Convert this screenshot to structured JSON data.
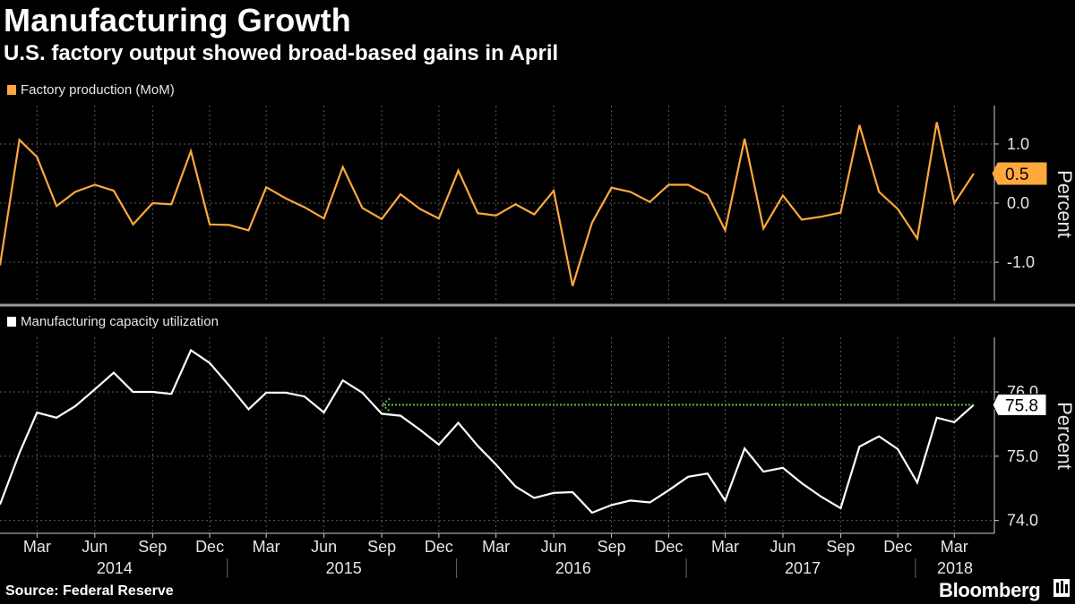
{
  "header": {
    "title": "Manufacturing Growth",
    "subtitle": "U.S. factory output showed broad-based gains in April"
  },
  "footer": {
    "source": "Source: Federal Reserve",
    "brand": "Bloomberg"
  },
  "colors": {
    "background": "#000000",
    "series1": "#ffa83e",
    "series2": "#ffffff",
    "arrow": "#59b93b",
    "grid": "#5a5a5a",
    "separator": "#9a9a9a"
  },
  "chart_data": [
    {
      "type": "line",
      "title": "",
      "series": [
        {
          "name": "Factory production (MoM)",
          "color": "#ffa83e",
          "x": [
            "2014-01",
            "2014-02",
            "2014-03",
            "2014-04",
            "2014-05",
            "2014-06",
            "2014-07",
            "2014-08",
            "2014-09",
            "2014-10",
            "2014-11",
            "2014-12",
            "2015-01",
            "2015-02",
            "2015-03",
            "2015-04",
            "2015-05",
            "2015-06",
            "2015-07",
            "2015-08",
            "2015-09",
            "2015-10",
            "2015-11",
            "2015-12",
            "2016-01",
            "2016-02",
            "2016-03",
            "2016-04",
            "2016-05",
            "2016-06",
            "2016-07",
            "2016-08",
            "2016-09",
            "2016-10",
            "2016-11",
            "2016-12",
            "2017-01",
            "2017-02",
            "2017-03",
            "2017-04",
            "2017-05",
            "2017-06",
            "2017-07",
            "2017-08",
            "2017-09",
            "2017-10",
            "2017-11",
            "2017-12",
            "2018-01",
            "2018-02",
            "2018-03",
            "2018-04"
          ],
          "values": [
            -1.05,
            1.07,
            0.78,
            -0.05,
            0.19,
            0.31,
            0.21,
            -0.36,
            0.0,
            -0.02,
            0.88,
            -0.36,
            -0.37,
            -0.46,
            0.27,
            0.08,
            -0.07,
            -0.26,
            0.61,
            -0.08,
            -0.27,
            0.15,
            -0.1,
            -0.26,
            0.55,
            -0.17,
            -0.21,
            -0.02,
            -0.19,
            0.21,
            -1.4,
            -0.33,
            0.26,
            0.19,
            0.02,
            0.31,
            0.31,
            0.14,
            -0.46,
            1.09,
            -0.43,
            0.13,
            -0.28,
            -0.23,
            -0.16,
            1.32,
            0.19,
            -0.1,
            -0.6,
            1.37,
            0.0,
            0.5
          ]
        }
      ],
      "ylim": [
        -1.65,
        1.65
      ],
      "yticks": [
        1.0,
        0.0,
        -1.0
      ],
      "ytick_labels": [
        "1.0",
        "0.0",
        "-1.0"
      ],
      "ylabel": "Percent",
      "last_value_label": "0.5",
      "grid": true,
      "legend_position": "top-left"
    },
    {
      "type": "line",
      "title": "",
      "series": [
        {
          "name": "Manufacturing capacity utilization",
          "color": "#ffffff",
          "x": [
            "2014-01",
            "2014-02",
            "2014-03",
            "2014-04",
            "2014-05",
            "2014-06",
            "2014-07",
            "2014-08",
            "2014-09",
            "2014-10",
            "2014-11",
            "2014-12",
            "2015-01",
            "2015-02",
            "2015-03",
            "2015-04",
            "2015-05",
            "2015-06",
            "2015-07",
            "2015-08",
            "2015-09",
            "2015-10",
            "2015-11",
            "2015-12",
            "2016-01",
            "2016-02",
            "2016-03",
            "2016-04",
            "2016-05",
            "2016-06",
            "2016-07",
            "2016-08",
            "2016-09",
            "2016-10",
            "2016-11",
            "2016-12",
            "2017-01",
            "2017-02",
            "2017-03",
            "2017-04",
            "2017-05",
            "2017-06",
            "2017-07",
            "2017-08",
            "2017-09",
            "2017-10",
            "2017-11",
            "2017-12",
            "2018-01",
            "2018-02",
            "2018-03",
            "2018-04"
          ],
          "values": [
            74.25,
            75.05,
            75.68,
            75.6,
            75.78,
            76.04,
            76.3,
            76.0,
            76.0,
            75.97,
            76.65,
            76.45,
            76.1,
            75.73,
            75.99,
            75.99,
            75.93,
            75.68,
            76.18,
            75.99,
            75.66,
            75.63,
            75.41,
            75.18,
            75.52,
            75.16,
            74.87,
            74.53,
            74.35,
            74.43,
            74.44,
            74.12,
            74.24,
            74.31,
            74.28,
            74.47,
            74.68,
            74.73,
            74.31,
            75.12,
            74.76,
            74.82,
            74.58,
            74.37,
            74.19,
            75.15,
            75.31,
            75.11,
            74.59,
            75.6,
            75.53,
            75.8
          ]
        }
      ],
      "ylim": [
        73.8,
        76.85
      ],
      "yticks": [
        76.0,
        75.0,
        74.0
      ],
      "ytick_labels": [
        "76.0",
        "75.0",
        "74.0"
      ],
      "ylabel": "Percent",
      "last_value_label": "75.8",
      "annotation": {
        "type": "arrow",
        "from_x": "2018-04",
        "to_x": "2015-09",
        "y": 75.8
      },
      "grid": true,
      "legend_position": "top-left"
    }
  ],
  "x_axis": {
    "month_ticks": [
      {
        "label": "Mar",
        "date": "2014-03"
      },
      {
        "label": "Jun",
        "date": "2014-06"
      },
      {
        "label": "Sep",
        "date": "2014-09"
      },
      {
        "label": "Dec",
        "date": "2014-12"
      },
      {
        "label": "Mar",
        "date": "2015-03"
      },
      {
        "label": "Jun",
        "date": "2015-06"
      },
      {
        "label": "Sep",
        "date": "2015-09"
      },
      {
        "label": "Dec",
        "date": "2015-12"
      },
      {
        "label": "Mar",
        "date": "2016-03"
      },
      {
        "label": "Jun",
        "date": "2016-06"
      },
      {
        "label": "Sep",
        "date": "2016-09"
      },
      {
        "label": "Dec",
        "date": "2016-12"
      },
      {
        "label": "Mar",
        "date": "2017-03"
      },
      {
        "label": "Jun",
        "date": "2017-06"
      },
      {
        "label": "Sep",
        "date": "2017-09"
      },
      {
        "label": "Dec",
        "date": "2017-12"
      },
      {
        "label": "Mar",
        "date": "2018-03"
      }
    ],
    "years": [
      "2014",
      "2015",
      "2016",
      "2017",
      "2018"
    ]
  }
}
